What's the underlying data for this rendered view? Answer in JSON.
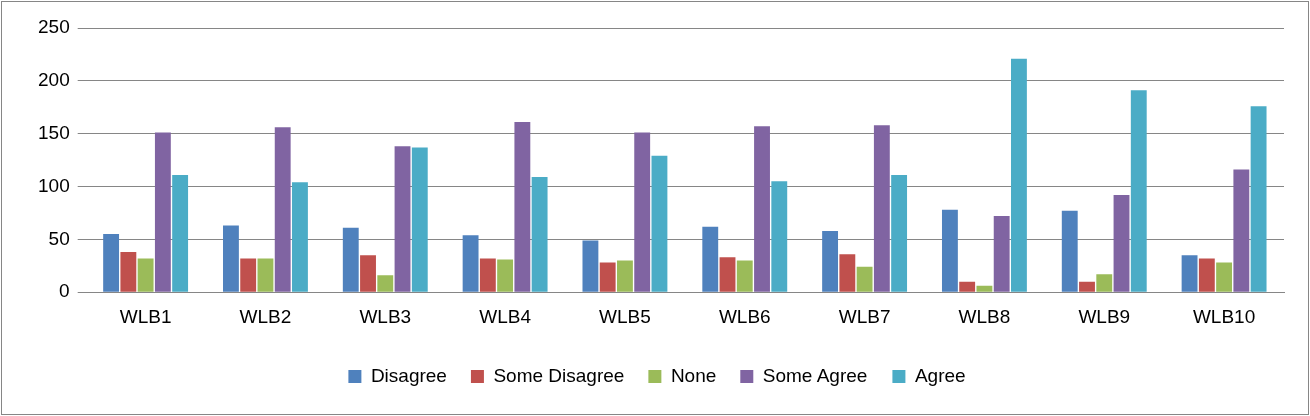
{
  "chart_data": {
    "type": "bar",
    "categories": [
      "WLB1",
      "WLB2",
      "WLB3",
      "WLB4",
      "WLB5",
      "WLB6",
      "WLB7",
      "WLB8",
      "WLB9",
      "WLB10"
    ],
    "series": [
      {
        "name": "Disagree",
        "color": "#4f81bd",
        "values": [
          55,
          63,
          61,
          54,
          49,
          62,
          58,
          78,
          77,
          35
        ]
      },
      {
        "name": "Some Disagree",
        "color": "#c0504d",
        "values": [
          38,
          32,
          35,
          32,
          28,
          33,
          36,
          10,
          10,
          32
        ]
      },
      {
        "name": "None",
        "color": "#9bbb59",
        "values": [
          32,
          32,
          16,
          31,
          30,
          30,
          24,
          6,
          17,
          28
        ]
      },
      {
        "name": "Some Agree",
        "color": "#8064a2",
        "values": [
          151,
          156,
          138,
          161,
          151,
          157,
          158,
          72,
          92,
          116
        ]
      },
      {
        "name": "Agree",
        "color": "#4bacc6",
        "values": [
          111,
          104,
          137,
          109,
          129,
          105,
          111,
          221,
          191,
          176
        ]
      }
    ],
    "ylim": [
      0,
      250
    ],
    "yticks": [
      0,
      50,
      100,
      150,
      200,
      250
    ],
    "grid": "y",
    "legend": "bottom"
  }
}
